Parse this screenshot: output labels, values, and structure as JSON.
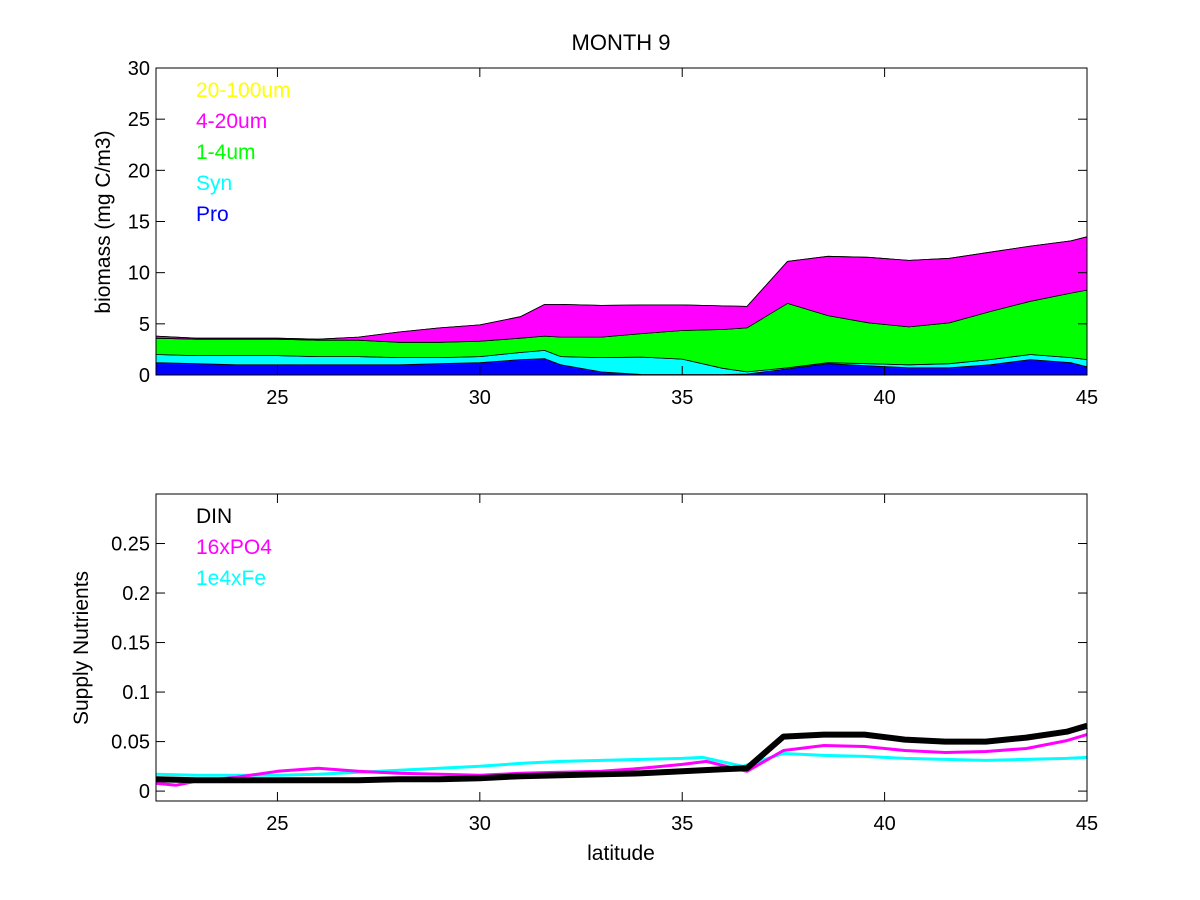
{
  "figure": {
    "title": "MONTH 9"
  },
  "chart_data": [
    {
      "type": "area",
      "title": "MONTH 9",
      "xlabel": "",
      "ylabel": "biomass (mg C/m3)",
      "xlim": [
        22,
        45
      ],
      "ylim": [
        0,
        30
      ],
      "x_ticks": [
        "25",
        "30",
        "35",
        "40",
        "45"
      ],
      "y_ticks": [
        "0",
        "5",
        "10",
        "15",
        "20",
        "25",
        "30"
      ],
      "legend_position": "top-left",
      "stacked": true,
      "x": [
        22,
        23,
        24,
        25,
        26,
        27,
        28,
        29,
        30,
        31,
        31.6,
        32,
        33,
        34,
        35,
        36,
        36.6,
        37.6,
        38.6,
        39.6,
        40.6,
        41.6,
        42.6,
        43.6,
        44.6,
        45
      ],
      "series": [
        {
          "name": "Pro",
          "color": "#0000ff",
          "values": [
            1.2,
            1.1,
            1.0,
            1.0,
            1.0,
            1.0,
            1.0,
            1.1,
            1.2,
            1.5,
            1.6,
            1.0,
            0.3,
            0.05,
            0.05,
            0.05,
            0.1,
            0.6,
            1.1,
            0.9,
            0.7,
            0.7,
            1.0,
            1.5,
            1.2,
            0.8
          ]
        },
        {
          "name": "Syn",
          "color": "#00ffff",
          "values": [
            0.8,
            0.8,
            0.9,
            0.9,
            0.8,
            0.8,
            0.7,
            0.6,
            0.6,
            0.7,
            0.8,
            0.8,
            1.4,
            1.7,
            1.5,
            0.6,
            0.2,
            0.1,
            0.1,
            0.2,
            0.3,
            0.4,
            0.5,
            0.5,
            0.5,
            0.7
          ]
        },
        {
          "name": "1-4um",
          "color": "#00ff00",
          "values": [
            1.6,
            1.6,
            1.6,
            1.6,
            1.6,
            1.6,
            1.5,
            1.5,
            1.5,
            1.4,
            1.4,
            1.9,
            2.0,
            2.3,
            2.8,
            3.8,
            4.3,
            6.3,
            4.6,
            4.0,
            3.7,
            4.0,
            4.7,
            5.2,
            6.3,
            6.8
          ]
        },
        {
          "name": "4-20um",
          "color": "#ff00ff",
          "values": [
            0.2,
            0.1,
            0.1,
            0.1,
            0.1,
            0.3,
            1.0,
            1.4,
            1.6,
            2.1,
            3.1,
            3.2,
            3.1,
            2.8,
            2.5,
            2.3,
            2.1,
            4.1,
            5.8,
            6.4,
            6.5,
            6.3,
            5.8,
            5.4,
            5.1,
            5.2
          ]
        },
        {
          "name": "20-100um",
          "color": "#ffff00",
          "values": [
            0,
            0,
            0,
            0,
            0,
            0,
            0,
            0,
            0,
            0,
            0,
            0,
            0,
            0,
            0,
            0,
            0,
            0,
            0,
            0,
            0,
            0,
            0,
            0,
            0,
            0
          ]
        }
      ]
    },
    {
      "type": "line",
      "title": "",
      "xlabel": "latitude",
      "ylabel": "Supply Nutrients",
      "xlim": [
        22,
        45
      ],
      "ylim": [
        -0.01,
        0.3
      ],
      "x_ticks": [
        "25",
        "30",
        "35",
        "40",
        "45"
      ],
      "y_ticks": [
        "0",
        "0.05",
        "0.1",
        "0.15",
        "0.2",
        "0.25"
      ],
      "legend_position": "top-left",
      "series": [
        {
          "name": "DIN",
          "color": "#000000",
          "x": [
            22,
            23,
            24,
            25,
            26,
            27,
            28,
            29,
            30,
            31,
            32,
            33,
            34,
            35,
            36,
            36.6,
            37.5,
            38.5,
            39.5,
            40.5,
            41.5,
            42.5,
            43.5,
            44.5,
            45
          ],
          "values": [
            0.012,
            0.011,
            0.011,
            0.011,
            0.011,
            0.011,
            0.012,
            0.012,
            0.013,
            0.015,
            0.016,
            0.017,
            0.018,
            0.02,
            0.022,
            0.023,
            0.055,
            0.057,
            0.057,
            0.052,
            0.05,
            0.05,
            0.054,
            0.06,
            0.066
          ]
        },
        {
          "name": "16xPO4",
          "color": "#ff00ff",
          "x": [
            22,
            22.5,
            23,
            24,
            25,
            26,
            27,
            28,
            29,
            30,
            31,
            32,
            33,
            34,
            35,
            35.6,
            36.6,
            37.5,
            38.5,
            39.5,
            40.5,
            41.5,
            42.5,
            43.5,
            44.5,
            45
          ],
          "values": [
            0.008,
            0.006,
            0.01,
            0.014,
            0.02,
            0.023,
            0.02,
            0.018,
            0.017,
            0.016,
            0.018,
            0.019,
            0.02,
            0.023,
            0.027,
            0.03,
            0.02,
            0.041,
            0.046,
            0.045,
            0.041,
            0.039,
            0.04,
            0.043,
            0.051,
            0.057
          ]
        },
        {
          "name": "1e4xFe",
          "color": "#00ffff",
          "x": [
            22,
            23,
            24,
            25,
            26,
            27,
            28,
            29,
            30,
            31,
            32,
            33,
            34,
            35,
            35.5,
            36.5,
            37.5,
            38.5,
            39.5,
            40.5,
            41.5,
            42.5,
            43.5,
            44.5,
            45
          ],
          "values": [
            0.017,
            0.016,
            0.016,
            0.016,
            0.017,
            0.019,
            0.021,
            0.023,
            0.025,
            0.028,
            0.03,
            0.031,
            0.032,
            0.033,
            0.034,
            0.025,
            0.038,
            0.036,
            0.035,
            0.033,
            0.032,
            0.031,
            0.032,
            0.033,
            0.034
          ]
        }
      ]
    }
  ]
}
